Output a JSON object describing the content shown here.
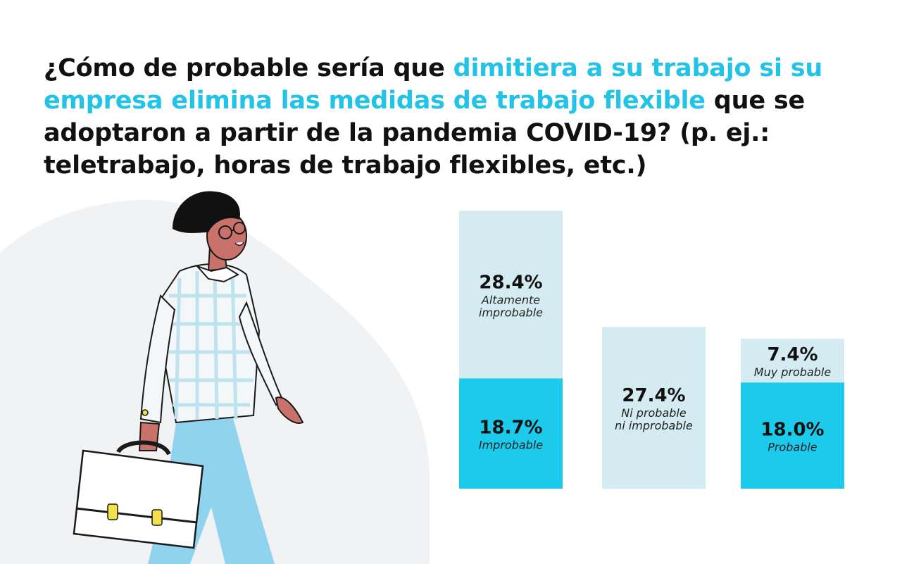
{
  "title": {
    "part1": "¿Cómo de probable sería que ",
    "highlight": "dimitiera a su trabajo si su empresa elimina las medidas de trabajo flexible",
    "part2": " que se adoptaron a partir de la pandemia COVID-19? (p. ej.: teletrabajo, horas de trabajo flexibles, etc.)"
  },
  "colors": {
    "dark_segment": "#1ccbec",
    "light_segment": "#d4ecf1",
    "highlight_text": "#22c3e6"
  },
  "chart_data": {
    "type": "bar",
    "stacked": true,
    "categories": [
      "",
      "",
      ""
    ],
    "series": [
      {
        "name": "",
        "values": [
          18.7,
          27.4,
          18.0
        ],
        "labels": [
          "Improbable",
          "Ni probable ni improbable",
          "Probable"
        ],
        "tone": [
          "dark",
          "light",
          "dark"
        ]
      },
      {
        "name": "",
        "values": [
          28.4,
          0,
          7.4
        ],
        "labels": [
          "Altamente improbable",
          "",
          "Muy probable"
        ],
        "tone": [
          "light",
          "",
          "light"
        ]
      }
    ],
    "value_labels": [
      [
        {
          "value": "18.7%",
          "label_lines": [
            "Improbable"
          ]
        },
        {
          "value": "28.4%",
          "label_lines": [
            "Altamente",
            "improbable"
          ]
        }
      ],
      [
        {
          "value": "27.4%",
          "label_lines": [
            "Ni probable",
            "ni improbable"
          ]
        }
      ],
      [
        {
          "value": "18.0%",
          "label_lines": [
            "Probable"
          ]
        },
        {
          "value": "7.4%",
          "label_lines": [
            "Muy probable"
          ]
        }
      ]
    ],
    "ylim": [
      0,
      50
    ],
    "grid": false,
    "axes_visible": false
  }
}
